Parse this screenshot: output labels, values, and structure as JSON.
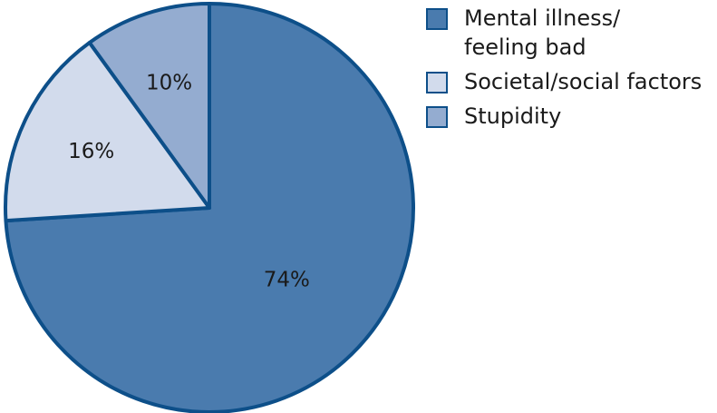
{
  "chart_data": {
    "type": "pie",
    "categories": [
      "Mental illness/\nfeeling bad",
      "Societal/social factors",
      "Stupidity"
    ],
    "values": [
      74,
      16,
      10
    ],
    "value_labels": [
      "74%",
      "16%",
      "10%"
    ],
    "colors": [
      "#4a7bae",
      "#d2dbec",
      "#94acd0"
    ],
    "edge_color": "#0d4f89"
  }
}
